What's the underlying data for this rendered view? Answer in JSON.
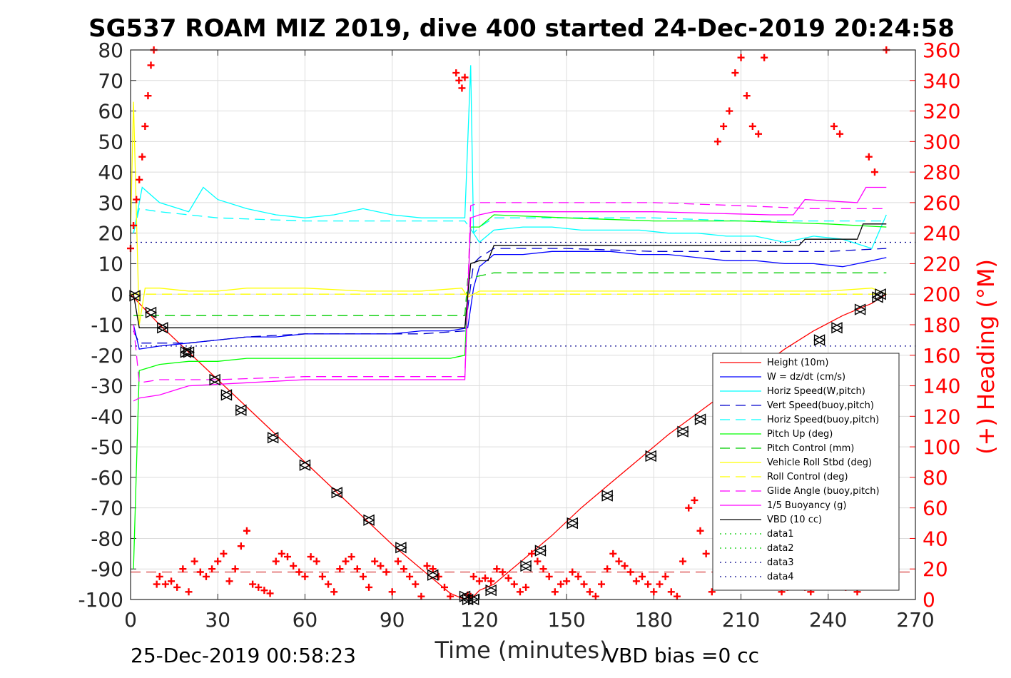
{
  "chart_data": {
    "type": "line",
    "title": "SG537 ROAM MIZ 2019, dive 400 started 24-Dec-2019 20:24:58",
    "xlabel": "Time (minutes)",
    "ylabel_left": "",
    "ylabel_right": "(+) Heading (°M)",
    "xlim": [
      0,
      270
    ],
    "ylim_left": [
      -100,
      80
    ],
    "ylim_right": [
      0,
      360
    ],
    "x_ticks": [
      "0",
      "30",
      "60",
      "90",
      "120",
      "150",
      "180",
      "210",
      "240",
      "270"
    ],
    "y_ticks_left": [
      "80",
      "70",
      "60",
      "50",
      "40",
      "30",
      "20",
      "10",
      "0",
      "-10",
      "-20",
      "-30",
      "-40",
      "-50",
      "-60",
      "-70",
      "-80",
      "-90",
      "-100"
    ],
    "y_ticks_right": [
      "360",
      "340",
      "320",
      "300",
      "280",
      "260",
      "240",
      "220",
      "200",
      "180",
      "160",
      "140",
      "120",
      "100",
      "80",
      "60",
      "40",
      "20",
      "0"
    ],
    "grid": true,
    "legend_position": "bottom-right",
    "footer_left": "25-Dec-2019 00:58:23",
    "footer_right": "VBD bias =0 cc",
    "series": [
      {
        "name": "Height (10m)",
        "color": "#ff0000",
        "style": "solid",
        "x": [
          0,
          2,
          10,
          20,
          30,
          40,
          50,
          60,
          70,
          80,
          90,
          100,
          110,
          115,
          117,
          120,
          125,
          135,
          145,
          155,
          165,
          175,
          185,
          195,
          205,
          215,
          225,
          235,
          245,
          255,
          260
        ],
        "y": [
          0,
          -2,
          -10,
          -19,
          -28,
          -37,
          -46,
          -55,
          -64,
          -73,
          -82,
          -90,
          -98,
          -100,
          -100,
          -97,
          -95,
          -87,
          -79,
          -70,
          -62,
          -54,
          -46,
          -39,
          -32,
          -25,
          -18,
          -12,
          -7,
          -3,
          0
        ]
      },
      {
        "name": "W = dz/dt (cm/s)",
        "color": "#0000ff",
        "style": "solid",
        "x": [
          1,
          3,
          10,
          20,
          30,
          40,
          50,
          60,
          70,
          80,
          90,
          100,
          110,
          116,
          118,
          120,
          125,
          135,
          145,
          155,
          165,
          175,
          185,
          195,
          205,
          215,
          225,
          235,
          245,
          255,
          260
        ],
        "y": [
          -10,
          -18,
          -17,
          -16,
          -15,
          -14,
          -14,
          -13,
          -13,
          -13,
          -13,
          -12,
          -12,
          -11,
          2,
          9,
          13,
          13,
          14,
          14,
          14,
          13,
          13,
          12,
          11,
          11,
          10,
          10,
          9,
          11,
          12
        ]
      },
      {
        "name": "Horiz Speed(W,pitch)",
        "color": "#00ffff",
        "style": "solid",
        "x": [
          1,
          4,
          10,
          20,
          25,
          30,
          40,
          50,
          60,
          70,
          80,
          90,
          100,
          110,
          115,
          117,
          118,
          120,
          125,
          135,
          145,
          155,
          165,
          175,
          185,
          195,
          205,
          215,
          225,
          235,
          245,
          255,
          260
        ],
        "y": [
          20,
          35,
          30,
          27,
          35,
          31,
          28,
          26,
          25,
          26,
          28,
          26,
          25,
          25,
          25,
          75,
          20,
          17,
          21,
          22,
          22,
          21,
          21,
          21,
          20,
          20,
          19,
          19,
          17,
          19,
          18,
          15,
          26
        ]
      },
      {
        "name": "Vert Speed(buoy,pitch)",
        "color": "#0000cd",
        "style": "dashed",
        "x": [
          1,
          3,
          10,
          20,
          30,
          40,
          60,
          80,
          100,
          115,
          118,
          120,
          125,
          150,
          180,
          210,
          240,
          260
        ],
        "y": [
          -12,
          -16,
          -16,
          -16,
          -15,
          -14,
          -13,
          -13,
          -13,
          -12,
          10,
          12,
          15,
          15,
          14,
          14,
          14,
          15
        ]
      },
      {
        "name": "Horiz Speed(buoy,pitch)",
        "color": "#00ffff",
        "style": "dashed",
        "x": [
          1,
          3,
          10,
          30,
          60,
          90,
          115,
          118,
          120,
          125,
          150,
          180,
          210,
          240,
          260
        ],
        "y": [
          20,
          28,
          27,
          25,
          24,
          24,
          24,
          20,
          22,
          25,
          25,
          25,
          24,
          24,
          24
        ]
      },
      {
        "name": "Pitch Up (deg)",
        "color": "#00ff00",
        "style": "solid",
        "x": [
          1,
          3,
          10,
          20,
          30,
          40,
          60,
          80,
          100,
          110,
          115,
          117,
          120,
          125,
          150,
          180,
          210,
          240,
          260
        ],
        "y": [
          -90,
          -25,
          -23,
          -22,
          -22,
          -21,
          -21,
          -21,
          -21,
          -21,
          -20,
          22,
          22,
          26,
          25,
          24,
          24,
          23,
          22
        ]
      },
      {
        "name": "Pitch Control (mm)",
        "color": "#00cc00",
        "style": "dashed",
        "x": [
          1,
          10,
          60,
          115,
          116,
          120,
          125,
          180,
          260
        ],
        "y": [
          -7,
          -7,
          -7,
          -7,
          5,
          6,
          7,
          7,
          7
        ]
      },
      {
        "name": "Vehicle Roll Stbd (deg)",
        "color": "#ffff00",
        "style": "solid",
        "x": [
          0,
          1,
          3,
          5,
          10,
          20,
          30,
          40,
          60,
          80,
          100,
          114,
          116,
          120,
          125,
          150,
          180,
          210,
          240,
          255,
          260
        ],
        "y": [
          20,
          63,
          -10,
          2,
          2,
          1,
          1,
          2,
          2,
          1,
          1,
          2,
          -1,
          1,
          1,
          1,
          1,
          1,
          1,
          2,
          0
        ]
      },
      {
        "name": "Roll Control (deg)",
        "color": "#ffff00",
        "style": "dashed",
        "x": [
          0,
          120,
          260
        ],
        "y": [
          0,
          0,
          0
        ]
      },
      {
        "name": "Glide Angle (buoy,pitch)",
        "color": "#ff00ff",
        "style": "dashed",
        "x": [
          1,
          3,
          10,
          30,
          60,
          90,
          115,
          117,
          120,
          125,
          150,
          180,
          210,
          235,
          245,
          260
        ],
        "y": [
          -10,
          -29,
          -28,
          -28,
          -27,
          -27,
          -27,
          29,
          30,
          30,
          30,
          30,
          29,
          28,
          28,
          28
        ]
      },
      {
        "name": "1/5 Buoyancy (g)",
        "color": "#ff00ff",
        "style": "solid",
        "x": [
          1,
          3,
          10,
          20,
          40,
          60,
          90,
          115,
          117,
          120,
          125,
          150,
          180,
          220,
          228,
          232,
          250,
          253,
          260
        ],
        "y": [
          -35,
          -34,
          -33,
          -30,
          -29,
          -28,
          -28,
          -28,
          25,
          26,
          27,
          27,
          27,
          26,
          26,
          31,
          30,
          35,
          35
        ]
      },
      {
        "name": "VBD (10 cc)",
        "color": "#000000",
        "style": "solid",
        "x": [
          1,
          3,
          10,
          60,
          115,
          117,
          120,
          123,
          125,
          160,
          200,
          230,
          232,
          250,
          252,
          260
        ],
        "y": [
          0,
          -11,
          -11,
          -11,
          -11,
          10,
          11,
          11,
          16,
          16,
          16,
          16,
          18,
          18,
          23,
          23
        ]
      },
      {
        "name": "data1",
        "color": "#00cc00",
        "style": "dotted",
        "x": [],
        "y": []
      },
      {
        "name": "data2",
        "color": "#00cc00",
        "style": "dotted",
        "x": [],
        "y": []
      },
      {
        "name": "data3",
        "color": "#00008b",
        "style": "dotted",
        "x": [
          0,
          270
        ],
        "y": [
          17,
          17
        ]
      },
      {
        "name": "data4",
        "color": "#00008b",
        "style": "dotted",
        "x": [
          0,
          270
        ],
        "y": [
          -17,
          -17
        ]
      }
    ],
    "reference_lines": [
      {
        "axis": "left",
        "y": -91,
        "color": "#cc0000",
        "style": "dashed"
      }
    ],
    "heading": {
      "axis": "right",
      "color": "#ff0000",
      "marker": "+",
      "x": [
        0,
        1,
        2,
        3,
        4,
        5,
        6,
        7,
        8,
        9,
        10,
        12,
        14,
        16,
        18,
        20,
        22,
        24,
        26,
        28,
        30,
        32,
        34,
        36,
        38,
        40,
        42,
        44,
        46,
        48,
        50,
        52,
        54,
        56,
        58,
        60,
        62,
        64,
        66,
        68,
        70,
        72,
        74,
        76,
        78,
        80,
        82,
        84,
        86,
        88,
        90,
        92,
        94,
        96,
        98,
        100,
        102,
        104,
        106,
        108,
        110,
        112,
        113,
        114,
        115,
        116,
        117,
        118,
        120,
        122,
        124,
        126,
        128,
        130,
        132,
        134,
        136,
        138,
        140,
        142,
        144,
        146,
        148,
        150,
        152,
        154,
        156,
        158,
        160,
        162,
        164,
        166,
        168,
        170,
        172,
        174,
        176,
        178,
        180,
        182,
        184,
        186,
        188,
        190,
        192,
        194,
        196,
        198,
        200,
        202,
        204,
        206,
        208,
        210,
        212,
        214,
        216,
        218,
        220,
        222,
        224,
        226,
        228,
        230,
        232,
        234,
        236,
        238,
        240,
        242,
        244,
        246,
        248,
        250,
        252,
        254,
        256,
        258,
        260
      ],
      "y": [
        230,
        245,
        262,
        275,
        290,
        310,
        330,
        350,
        360,
        10,
        15,
        10,
        12,
        8,
        20,
        5,
        25,
        18,
        15,
        20,
        25,
        30,
        12,
        20,
        35,
        45,
        10,
        8,
        6,
        4,
        25,
        30,
        28,
        22,
        18,
        15,
        28,
        25,
        15,
        10,
        5,
        20,
        25,
        28,
        20,
        15,
        8,
        25,
        22,
        18,
        5,
        25,
        20,
        15,
        10,
        2,
        22,
        20,
        15,
        8,
        2,
        345,
        340,
        335,
        342,
        3,
        2,
        15,
        12,
        14,
        12,
        20,
        18,
        14,
        10,
        5,
        8,
        30,
        25,
        20,
        15,
        5,
        10,
        12,
        18,
        15,
        10,
        5,
        2,
        10,
        20,
        30,
        25,
        22,
        18,
        12,
        15,
        10,
        5,
        10,
        15,
        5,
        2,
        25,
        60,
        65,
        45,
        30,
        5,
        300,
        310,
        320,
        345,
        355,
        330,
        310,
        305,
        355,
        20,
        15,
        5,
        8,
        10,
        12,
        8,
        5,
        10,
        15,
        15,
        310,
        305,
        8,
        12,
        5,
        10,
        290,
        280,
        15,
        360
      ]
    },
    "markers": {
      "axis": "left",
      "color": "#000000",
      "x": [
        1.5,
        7,
        11,
        19,
        20,
        29,
        33,
        38,
        49,
        60,
        71,
        82,
        93,
        104,
        115,
        116,
        118,
        124,
        136,
        141,
        152,
        164,
        179,
        190,
        196,
        237,
        243,
        251,
        257,
        258
      ],
      "y": [
        -0.5,
        -6,
        -11,
        -19,
        -19,
        -28,
        -33,
        -38,
        -47,
        -56,
        -65,
        -74,
        -83,
        -92,
        -99,
        -100,
        -100,
        -97,
        -89,
        -84,
        -75,
        -66,
        -53,
        -45,
        -41,
        -15,
        -11,
        -5,
        -1,
        0
      ]
    }
  }
}
